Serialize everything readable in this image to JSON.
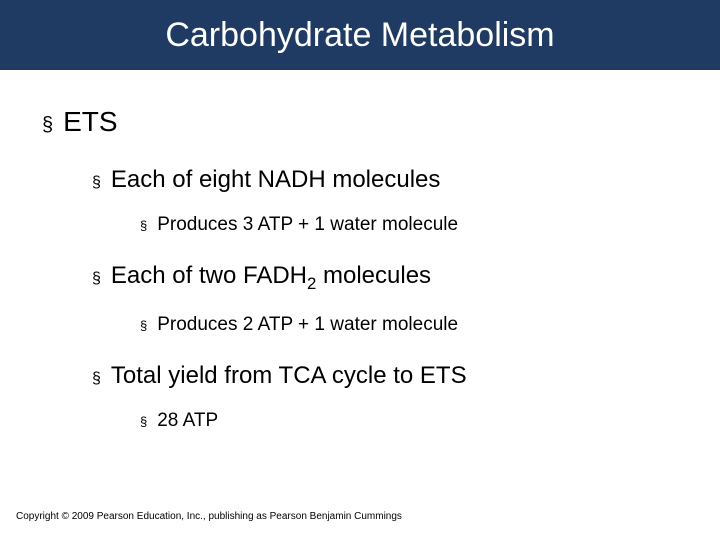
{
  "title": "Carbohydrate Metabolism",
  "bullets": {
    "l1": "ETS",
    "l2a": "Each of eight NADH molecules",
    "l3a": "Produces 3 ATP + 1 water molecule",
    "l2b_pre": "Each of two FADH",
    "l2b_sub": "2",
    "l2b_post": " molecules",
    "l3b": "Produces 2 ATP + 1 water molecule",
    "l2c": "Total yield from TCA cycle to ETS",
    "l3c": "28 ATP"
  },
  "copyright": "Copyright © 2009 Pearson Education, Inc., publishing as Pearson Benjamin Cummings",
  "colors": {
    "title_bg": "#1f3a63",
    "title_fg": "#ffffff",
    "body_bg": "#ffffff",
    "text": "#000000"
  },
  "bullet_glyph": "§"
}
